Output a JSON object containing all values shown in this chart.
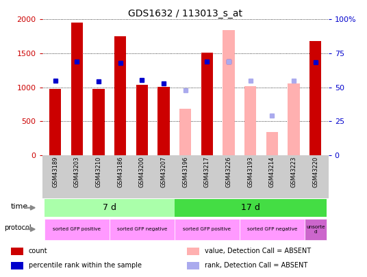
{
  "title": "GDS1632 / 113013_s_at",
  "samples": [
    "GSM43189",
    "GSM43203",
    "GSM43210",
    "GSM43186",
    "GSM43200",
    "GSM43207",
    "GSM43196",
    "GSM43217",
    "GSM43226",
    "GSM43193",
    "GSM43214",
    "GSM43223",
    "GSM43220"
  ],
  "count_values": [
    980,
    1950,
    980,
    1750,
    1040,
    1010,
    null,
    1510,
    null,
    null,
    null,
    null,
    1680
  ],
  "rank_values": [
    55,
    69,
    54.5,
    68,
    55.5,
    53,
    null,
    69,
    69,
    null,
    null,
    null,
    68.5
  ],
  "absent_count_values": [
    null,
    null,
    null,
    null,
    null,
    null,
    680,
    null,
    1840,
    1020,
    340,
    1060,
    null
  ],
  "absent_rank_values": [
    null,
    null,
    null,
    null,
    null,
    null,
    48,
    null,
    69,
    55,
    29,
    55,
    null
  ],
  "ylim_left": [
    0,
    2000
  ],
  "ylim_right": [
    0,
    100
  ],
  "left_ticks": [
    0,
    500,
    1000,
    1500,
    2000
  ],
  "right_ticks": [
    0,
    25,
    50,
    75,
    100
  ],
  "bar_color_present": "#cc0000",
  "bar_color_absent": "#ffb0b0",
  "rank_color_present": "#0000cc",
  "rank_color_absent": "#aaaaee",
  "bg_color": "#ffffff",
  "left_tick_color": "#cc0000",
  "right_tick_color": "#0000cc",
  "time_ranges": [
    [
      0,
      6,
      "7 d",
      "#aaffaa"
    ],
    [
      6,
      13,
      "17 d",
      "#44dd44"
    ]
  ],
  "proto_ranges": [
    [
      0,
      3,
      "sorted GFP positive",
      "#ff99ff"
    ],
    [
      3,
      6,
      "sorted GFP negative",
      "#ff99ff"
    ],
    [
      6,
      9,
      "sorted GFP positive",
      "#ff99ff"
    ],
    [
      9,
      12,
      "sorted GFP negative",
      "#ff99ff"
    ],
    [
      12,
      13,
      "unsorte\nd",
      "#cc66cc"
    ]
  ],
  "legend_items": [
    {
      "label": "count",
      "color": "#cc0000"
    },
    {
      "label": "percentile rank within the sample",
      "color": "#0000cc"
    },
    {
      "label": "value, Detection Call = ABSENT",
      "color": "#ffb0b0"
    },
    {
      "label": "rank, Detection Call = ABSENT",
      "color": "#aaaaee"
    }
  ]
}
